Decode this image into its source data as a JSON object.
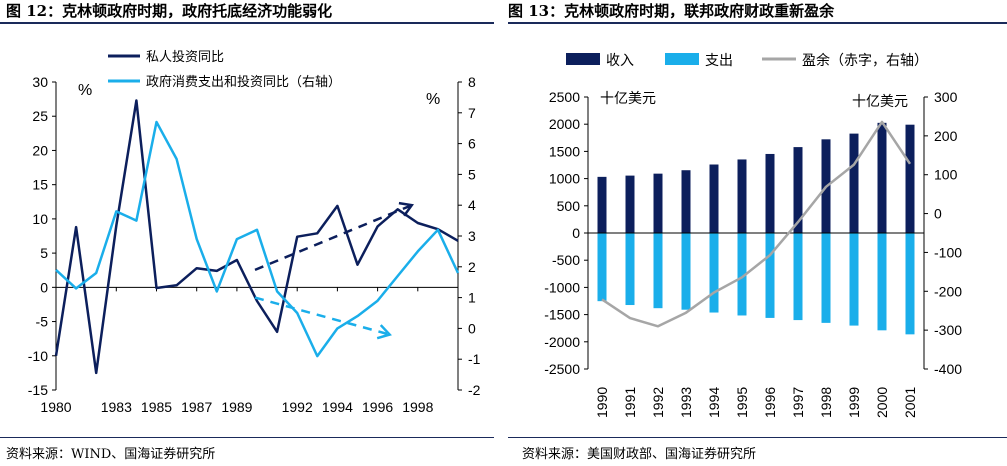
{
  "charts": {
    "left": {
      "title": "图 12：克林顿政府时期，政府托底经济功能弱化",
      "source": "资料来源：WIND、国海证券研究所"
    },
    "right": {
      "title": "图 13：克林顿政府时期，联邦政府财政重新盈余",
      "source": "资料来源：美国财政部、国海证券研究所"
    }
  },
  "chart_data": [
    {
      "type": "line",
      "title": "克林顿政府时期，政府托底经济功能弱化",
      "x_tick_labels": [
        "1980",
        "1983",
        "1985",
        "1987",
        "1989",
        "1992",
        "1994",
        "1996",
        "1998"
      ],
      "xlim": [
        1980,
        2000
      ],
      "ylim_left": [
        -15,
        30
      ],
      "ylim_right": [
        -2,
        8
      ],
      "unit_left": "%",
      "unit_right": "%",
      "series": [
        {
          "name": "私人投资同比",
          "axis": "left",
          "color": "#0c1f5c",
          "x": [
            1980,
            1981,
            1982,
            1983,
            1984,
            1985,
            1986,
            1987,
            1988,
            1989,
            1990,
            1991,
            1992,
            1993,
            1994,
            1995,
            1996,
            1997,
            1998,
            1999,
            2000
          ],
          "y": [
            -10.0,
            8.8,
            -12.5,
            9.0,
            27.3,
            -0.1,
            0.3,
            2.8,
            2.4,
            4.0,
            -2.0,
            -6.5,
            7.4,
            7.9,
            11.9,
            3.3,
            8.9,
            11.4,
            9.4,
            8.5,
            6.8
          ]
        },
        {
          "name": "政府消费支出和投资同比（右轴）",
          "axis": "right",
          "color": "#1aaeea",
          "x": [
            1980,
            1981,
            1982,
            1983,
            1984,
            1985,
            1986,
            1987,
            1988,
            1989,
            1990,
            1991,
            1992,
            1993,
            1994,
            1995,
            1996,
            1997,
            1998,
            1999,
            2000
          ],
          "y": [
            1.9,
            1.3,
            1.8,
            3.8,
            3.5,
            6.7,
            5.5,
            2.9,
            1.2,
            2.9,
            3.2,
            1.2,
            0.5,
            -0.9,
            0.0,
            0.4,
            0.9,
            1.7,
            2.5,
            3.2,
            1.8
          ]
        }
      ],
      "annotations": [
        {
          "type": "dashed-arrow",
          "direction": "up",
          "color": "#0c1f5c",
          "from": [
            1989.9,
            1.9
          ],
          "to": [
            1997.7,
            4.0
          ],
          "axis": "right"
        },
        {
          "type": "dashed-arrow",
          "direction": "down",
          "color": "#1aaeea",
          "from": [
            1989.9,
            1.0
          ],
          "to": [
            1996.6,
            -0.2
          ],
          "axis": "right"
        }
      ],
      "grid": false,
      "legend": "top-left"
    },
    {
      "type": "bar",
      "title": "克林顿政府时期，联邦政府财政重新盈余",
      "categories": [
        "1990",
        "1991",
        "1992",
        "1993",
        "1994",
        "1995",
        "1996",
        "1997",
        "1998",
        "1999",
        "2000",
        "2001"
      ],
      "ylabel_left": "十亿美元",
      "ylabel_right": "十亿美元",
      "ylim_left": [
        -2500,
        2500
      ],
      "ylim_right": [
        -400,
        300
      ],
      "series": [
        {
          "name": "收入",
          "type": "bar",
          "axis": "left",
          "color": "#0c1f5c",
          "values": [
            1032,
            1055,
            1091,
            1154,
            1259,
            1352,
            1453,
            1579,
            1722,
            1827,
            2025,
            1991
          ]
        },
        {
          "name": "支出",
          "type": "bar",
          "axis": "left",
          "color": "#1aaeea",
          "values": [
            -1253,
            -1324,
            -1382,
            -1410,
            -1462,
            -1516,
            -1561,
            -1601,
            -1652,
            -1702,
            -1789,
            -1863
          ]
        },
        {
          "name": "盈余（赤字，右轴）",
          "type": "line",
          "axis": "right",
          "color": "#a6a6a6",
          "values": [
            -221,
            -269,
            -290,
            -255,
            -203,
            -164,
            -107,
            -22,
            69,
            126,
            236,
            128
          ]
        }
      ],
      "grid": false,
      "legend": "top"
    }
  ]
}
